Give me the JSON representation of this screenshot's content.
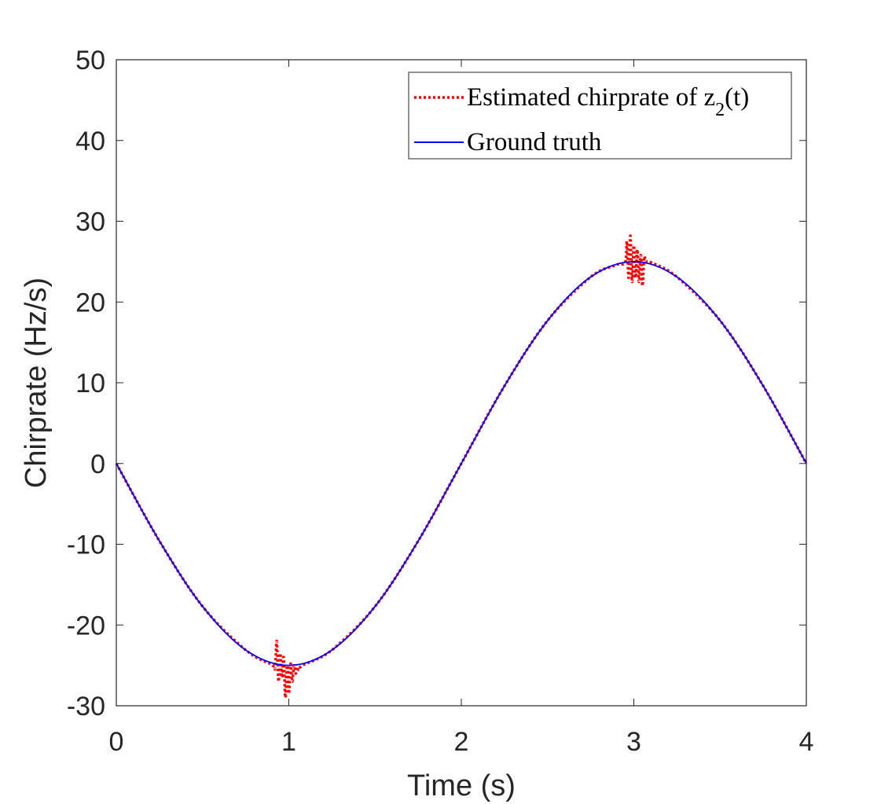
{
  "chart_data": {
    "type": "line",
    "title": "",
    "xlabel": "Time (s)",
    "ylabel": "Chirprate (Hz/s)",
    "xlim": [
      0,
      4
    ],
    "ylim": [
      -30,
      50
    ],
    "xticks": [
      0,
      1,
      2,
      3,
      4
    ],
    "yticks": [
      -30,
      -20,
      -10,
      0,
      10,
      20,
      30,
      40,
      50
    ],
    "xtick_labels": [
      "0",
      "1",
      "2",
      "3",
      "4"
    ],
    "ytick_labels": [
      "-30",
      "-20",
      "-10",
      "0",
      "10",
      "20",
      "30",
      "40",
      "50"
    ],
    "grid": false,
    "legend_position": "top-right",
    "legend": {
      "estimated_prefix": "Estimated chirprate of z",
      "estimated_subscript": "2",
      "estimated_suffix": "(t)",
      "ground_truth": "Ground truth"
    },
    "series": [
      {
        "name": "Estimated chirprate of z2(t)",
        "color": "#ff0000",
        "style": "dotted",
        "x": [
          0,
          0.25,
          0.5,
          0.75,
          0.9,
          0.92,
          0.93,
          0.94,
          0.95,
          0.96,
          0.97,
          0.98,
          0.99,
          1.0,
          1.01,
          1.02,
          1.03,
          1.04,
          1.05,
          1.06,
          1.08,
          1.25,
          1.5,
          1.75,
          2.0,
          2.25,
          2.5,
          2.75,
          2.9,
          2.95,
          2.96,
          2.97,
          2.98,
          2.99,
          3.0,
          3.01,
          3.02,
          3.03,
          3.04,
          3.05,
          3.06,
          3.07,
          3.1,
          3.25,
          3.5,
          3.75,
          4.0
        ],
        "y": [
          0,
          -9.6,
          -17.7,
          -23.1,
          -24.9,
          -25.3,
          -22.0,
          -27.0,
          -23.5,
          -26.5,
          -24.0,
          -29.0,
          -25.0,
          -28.5,
          -24.8,
          -27.0,
          -25.0,
          -26.0,
          -25.2,
          -25.6,
          -25.0,
          -23.1,
          -17.7,
          -9.6,
          0,
          9.6,
          17.7,
          23.1,
          24.6,
          24.9,
          27.5,
          23.0,
          28.2,
          22.5,
          27.0,
          23.0,
          26.5,
          22.5,
          25.8,
          22.0,
          25.5,
          25.0,
          24.9,
          23.1,
          17.7,
          9.6,
          0
        ]
      },
      {
        "name": "Ground truth",
        "color": "#0000ff",
        "style": "solid",
        "x": [
          0,
          0.25,
          0.5,
          0.75,
          1.0,
          1.25,
          1.5,
          1.75,
          2.0,
          2.25,
          2.5,
          2.75,
          3.0,
          3.25,
          3.5,
          3.75,
          4.0
        ],
        "y": [
          0,
          -9.6,
          -17.7,
          -23.1,
          -25.0,
          -23.1,
          -17.7,
          -9.6,
          0,
          9.6,
          17.7,
          23.1,
          25.0,
          23.1,
          17.7,
          9.6,
          0
        ]
      }
    ]
  }
}
